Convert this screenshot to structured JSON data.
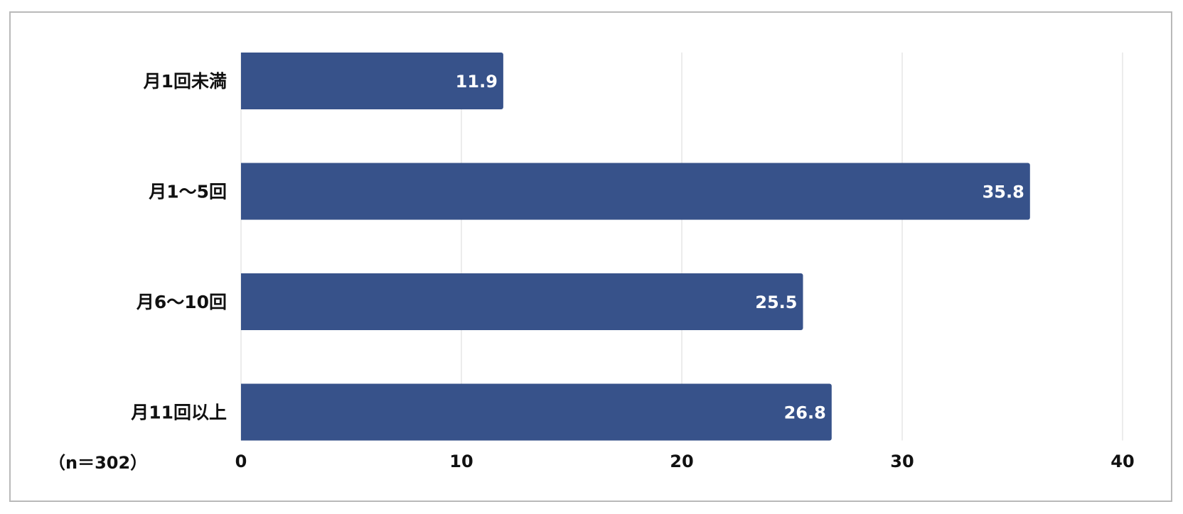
{
  "note": "（n＝302）",
  "colors": {
    "bar": "#37528a",
    "grid": "#d9d9d9",
    "frame": "#b9b9b9",
    "text": "#111111",
    "data_label": "#ffffff"
  },
  "chart_data": {
    "type": "bar",
    "orientation": "horizontal",
    "categories": [
      "月1回未満",
      "月1〜5回",
      "月6〜10回",
      "月11回以上"
    ],
    "values": [
      11.9,
      35.8,
      25.5,
      26.8
    ],
    "data_labels": [
      "11.9",
      "35.8",
      "25.5",
      "26.8"
    ],
    "x_ticks": [
      0,
      10,
      20,
      30,
      40
    ],
    "xlim": [
      0,
      40
    ],
    "grid": "vertical",
    "legend": "none"
  }
}
